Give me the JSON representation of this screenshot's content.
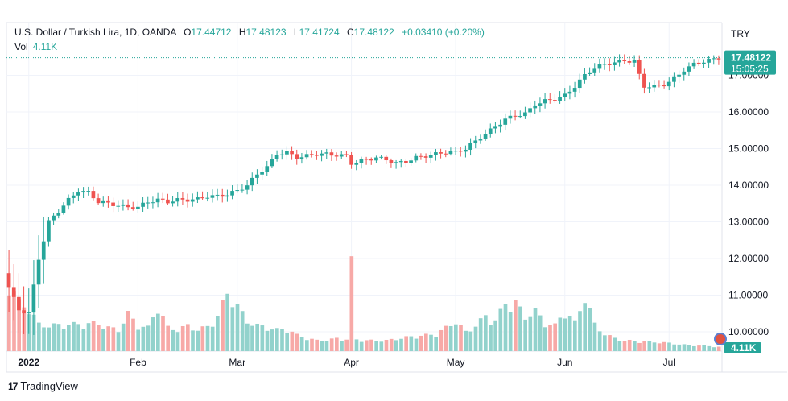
{
  "header": {
    "symbol": "U.S. Dollar / Turkish Lira, 1D, OANDA",
    "open_label": "O",
    "open": "17.44712",
    "high_label": "H",
    "high": "17.48123",
    "low_label": "L",
    "low": "17.41724",
    "close_label": "C",
    "close": "17.48122",
    "change": "+0.03410 (+0.20%)",
    "vol_label": "Vol",
    "vol_value": "4.11K",
    "currency": "TRY"
  },
  "price_tag": {
    "price": "17.48122",
    "countdown": "15:05:25"
  },
  "vol_tag": "4.11K",
  "brand": {
    "logo": "17",
    "name": "TradingView"
  },
  "colors": {
    "up": "#26a69a",
    "down": "#ef5350",
    "vol_up": "#92d2cc",
    "vol_down": "#f7a9a7",
    "grid": "#f0f3fa"
  },
  "chart_data": {
    "type": "candlestick",
    "title": "U.S. Dollar / Turkish Lira, 1D, OANDA",
    "ylim": [
      9.7,
      18.0
    ],
    "y_ticks": [
      "17.00000",
      "16.00000",
      "15.00000",
      "14.00000",
      "13.00000",
      "12.00000",
      "11.00000",
      "10.00000"
    ],
    "y_tick_values": [
      17,
      16,
      15,
      14,
      13,
      12,
      11,
      10
    ],
    "x_tick_labels": [
      {
        "label": "2022",
        "bar": 4,
        "bold": true
      },
      {
        "label": "Feb",
        "bar": 26
      },
      {
        "label": "Mar",
        "bar": 46
      },
      {
        "label": "Apr",
        "bar": 69
      },
      {
        "label": "May",
        "bar": 90
      },
      {
        "label": "Jun",
        "bar": 112
      },
      {
        "label": "Jul",
        "bar": 133
      }
    ],
    "grid": true,
    "bars": 144,
    "close_key": [
      [
        0,
        11.2
      ],
      [
        2,
        10.6
      ],
      [
        4,
        10.5
      ],
      [
        6,
        12.0
      ],
      [
        8,
        13.0
      ],
      [
        10,
        13.3
      ],
      [
        12,
        13.6
      ],
      [
        14,
        13.85
      ],
      [
        16,
        13.8
      ],
      [
        18,
        13.55
      ],
      [
        20,
        13.5
      ],
      [
        22,
        13.45
      ],
      [
        24,
        13.4
      ],
      [
        26,
        13.4
      ],
      [
        28,
        13.55
      ],
      [
        30,
        13.6
      ],
      [
        32,
        13.55
      ],
      [
        34,
        13.6
      ],
      [
        36,
        13.6
      ],
      [
        38,
        13.62
      ],
      [
        40,
        13.7
      ],
      [
        42,
        13.7
      ],
      [
        44,
        13.75
      ],
      [
        46,
        13.85
      ],
      [
        48,
        14.0
      ],
      [
        50,
        14.3
      ],
      [
        52,
        14.5
      ],
      [
        54,
        14.85
      ],
      [
        56,
        14.9
      ],
      [
        58,
        14.75
      ],
      [
        60,
        14.8
      ],
      [
        62,
        14.85
      ],
      [
        64,
        14.85
      ],
      [
        66,
        14.82
      ],
      [
        68,
        14.8
      ],
      [
        69,
        14.6
      ],
      [
        72,
        14.7
      ],
      [
        74,
        14.75
      ],
      [
        76,
        14.7
      ],
      [
        78,
        14.6
      ],
      [
        80,
        14.65
      ],
      [
        82,
        14.75
      ],
      [
        84,
        14.8
      ],
      [
        86,
        14.85
      ],
      [
        88,
        14.9
      ],
      [
        90,
        14.9
      ],
      [
        92,
        15.0
      ],
      [
        94,
        15.2
      ],
      [
        96,
        15.4
      ],
      [
        98,
        15.6
      ],
      [
        100,
        15.8
      ],
      [
        102,
        15.9
      ],
      [
        104,
        15.95
      ],
      [
        106,
        16.2
      ],
      [
        108,
        16.3
      ],
      [
        110,
        16.35
      ],
      [
        112,
        16.45
      ],
      [
        114,
        16.7
      ],
      [
        116,
        17.0
      ],
      [
        118,
        17.2
      ],
      [
        120,
        17.3
      ],
      [
        122,
        17.35
      ],
      [
        124,
        17.4
      ],
      [
        126,
        17.38
      ],
      [
        127,
        17.0
      ],
      [
        128,
        16.7
      ],
      [
        130,
        16.7
      ],
      [
        132,
        16.75
      ],
      [
        134,
        16.9
      ],
      [
        136,
        17.15
      ],
      [
        138,
        17.3
      ],
      [
        140,
        17.38
      ],
      [
        142,
        17.44
      ],
      [
        143,
        17.48
      ]
    ],
    "volume_key": [
      [
        0,
        6.5
      ],
      [
        2,
        4.5
      ],
      [
        4,
        4.0
      ],
      [
        6,
        2.5
      ],
      [
        8,
        2.4
      ],
      [
        12,
        2.5
      ],
      [
        18,
        2.6
      ],
      [
        20,
        2.2
      ],
      [
        22,
        2.0
      ],
      [
        24,
        3.5
      ],
      [
        26,
        2.4
      ],
      [
        28,
        2.2
      ],
      [
        30,
        4.2
      ],
      [
        32,
        2.2
      ],
      [
        34,
        2.0
      ],
      [
        36,
        2.4
      ],
      [
        38,
        2.0
      ],
      [
        40,
        2.3
      ],
      [
        42,
        3.3
      ],
      [
        44,
        5.5
      ],
      [
        46,
        4.2
      ],
      [
        48,
        2.8
      ],
      [
        50,
        2.4
      ],
      [
        52,
        2.2
      ],
      [
        54,
        2.0
      ],
      [
        56,
        2.1
      ],
      [
        58,
        1.5
      ],
      [
        60,
        1.2
      ],
      [
        62,
        1.0
      ],
      [
        64,
        1.0
      ],
      [
        66,
        1.2
      ],
      [
        68,
        1.1
      ],
      [
        69,
        8.2
      ],
      [
        70,
        1.1
      ],
      [
        72,
        1.0
      ],
      [
        76,
        1.0
      ],
      [
        80,
        1.3
      ],
      [
        84,
        1.5
      ],
      [
        86,
        1.6
      ],
      [
        88,
        2.2
      ],
      [
        90,
        2.8
      ],
      [
        92,
        1.8
      ],
      [
        94,
        2.4
      ],
      [
        96,
        3.3
      ],
      [
        98,
        2.8
      ],
      [
        100,
        4.5
      ],
      [
        101,
        4.3
      ],
      [
        102,
        4.6
      ],
      [
        104,
        3.2
      ],
      [
        106,
        3.8
      ],
      [
        108,
        2.6
      ],
      [
        110,
        2.4
      ],
      [
        112,
        3.8
      ],
      [
        114,
        2.6
      ],
      [
        116,
        5.2
      ],
      [
        118,
        2.5
      ],
      [
        120,
        1.6
      ],
      [
        122,
        1.2
      ],
      [
        124,
        1.0
      ],
      [
        128,
        0.9
      ],
      [
        132,
        0.8
      ],
      [
        136,
        0.6
      ],
      [
        140,
        0.5
      ],
      [
        143,
        0.4
      ]
    ]
  }
}
